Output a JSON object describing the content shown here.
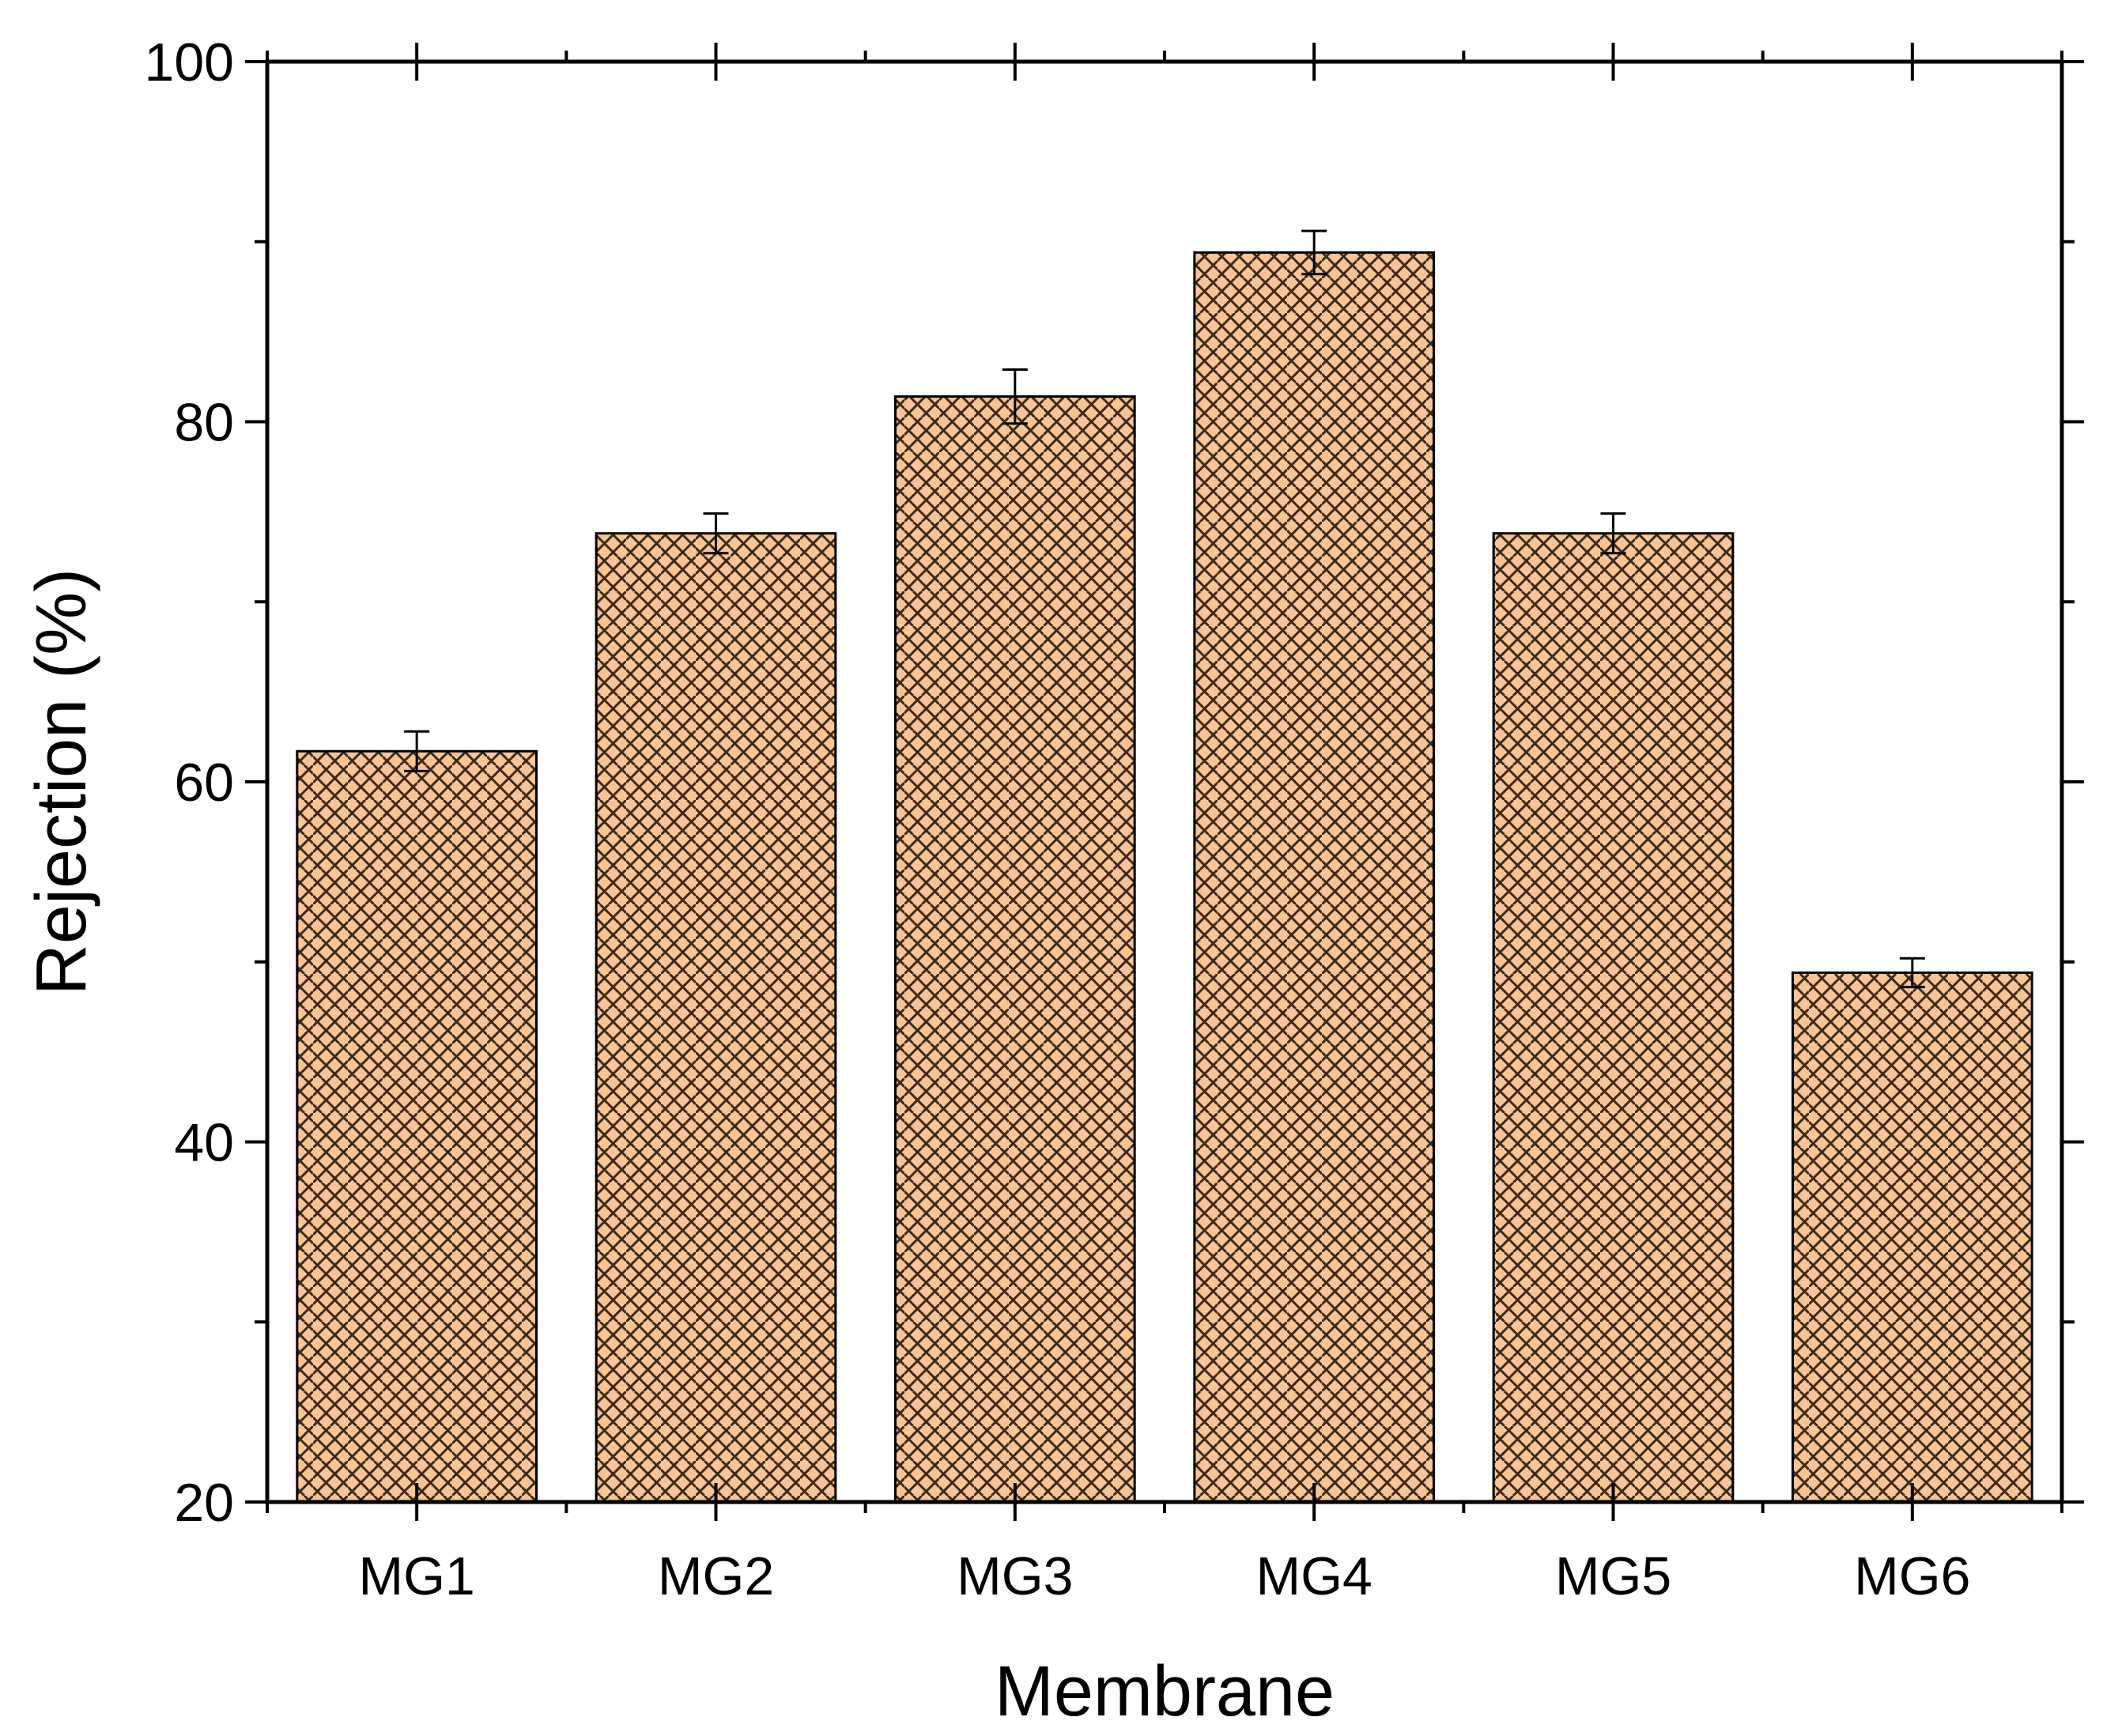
{
  "chart_data": {
    "type": "bar",
    "title": "",
    "xlabel": "Membrane",
    "ylabel": "Rejection (%)",
    "categories": [
      "MG1",
      "MG2",
      "MG3",
      "MG4",
      "MG5",
      "MG6"
    ],
    "values": [
      61.7,
      73.8,
      81.4,
      89.4,
      73.8,
      49.4
    ],
    "errors": [
      1.1,
      1.1,
      1.5,
      1.2,
      1.1,
      0.8
    ],
    "ylim": [
      20,
      100
    ],
    "yticks": [
      20,
      40,
      60,
      80,
      100
    ],
    "y_minor_ticks": [
      30,
      50,
      70,
      90
    ],
    "bar_color": "#f8c493",
    "hatch_color": "#3a2a1a",
    "grid": false,
    "legend": "none"
  }
}
